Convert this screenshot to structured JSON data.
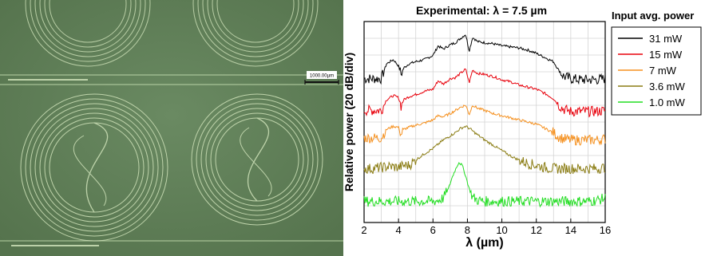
{
  "micrograph": {
    "scale_bar_label": "1000.00µm"
  },
  "chart_data": {
    "type": "line",
    "title": "Experimental:  λ = 7.5 µm",
    "xlabel": "λ (µm)",
    "ylabel": "Relative power (20 dB/div)",
    "xlim": [
      2,
      16
    ],
    "xticks": [
      "2",
      "4",
      "6",
      "8",
      "10",
      "12",
      "14",
      "16"
    ],
    "grid": true,
    "legend_title": "Input avg. power",
    "legend_position": "right",
    "series": [
      {
        "name": "31 mW",
        "color": "#000000",
        "x": [
          2,
          2.5,
          3,
          3.3,
          3.7,
          4,
          4.15,
          4.3,
          4.6,
          5,
          5.5,
          6,
          6.3,
          6.6,
          7,
          7.3,
          7.6,
          7.9,
          8.1,
          8.3,
          8.6,
          9,
          9.5,
          10,
          10.5,
          11,
          11.5,
          12,
          12.5,
          13,
          13.3,
          13.6,
          14,
          14.5,
          15,
          15.5,
          16
        ],
        "y": [
          -1.2,
          -1.2,
          -1.2,
          -0.5,
          -0.3,
          -0.6,
          -1.0,
          -0.7,
          -0.5,
          -0.4,
          -0.3,
          -0.1,
          0.35,
          0.2,
          0.4,
          0.5,
          0.7,
          0.9,
          0.1,
          0.75,
          0.55,
          0.5,
          0.45,
          0.35,
          0.3,
          0.25,
          0.15,
          0,
          -0.2,
          -0.4,
          -0.8,
          -1.1,
          -1.2,
          -1.25,
          -1.25,
          -1.25,
          -1.2
        ]
      },
      {
        "name": "15 mW",
        "color": "#e8000b",
        "x": [
          2,
          2.5,
          3,
          3.3,
          3.7,
          4,
          4.15,
          4.3,
          4.6,
          5,
          5.5,
          6,
          6.3,
          6.6,
          7,
          7.3,
          7.6,
          7.9,
          8.1,
          8.3,
          8.6,
          9,
          9.5,
          10,
          10.5,
          11,
          11.5,
          12,
          12.5,
          13,
          13.3,
          13.6,
          14,
          14.5,
          15,
          15.5,
          16
        ],
        "y": [
          -2.7,
          -2.7,
          -2.7,
          -2.2,
          -2.0,
          -2.1,
          -2.5,
          -2.2,
          -2.05,
          -1.95,
          -1.8,
          -1.7,
          -1.3,
          -1.45,
          -1.2,
          -1.15,
          -0.95,
          -0.75,
          -1.4,
          -0.8,
          -0.95,
          -1.0,
          -1.1,
          -1.25,
          -1.35,
          -1.5,
          -1.6,
          -1.7,
          -1.9,
          -2.15,
          -2.45,
          -2.65,
          -2.75,
          -2.75,
          -2.75,
          -2.75,
          -2.7
        ]
      },
      {
        "name": "7 mW",
        "color": "#f5901e",
        "x": [
          2,
          2.5,
          3,
          3.3,
          3.7,
          4,
          4.15,
          4.3,
          4.6,
          5,
          5.5,
          6,
          6.3,
          6.6,
          7,
          7.3,
          7.6,
          7.9,
          8.1,
          8.3,
          8.6,
          9,
          9.5,
          10,
          10.5,
          11,
          11.5,
          12,
          12.5,
          13,
          13.3,
          13.6,
          14,
          14.5,
          15,
          15.5,
          16
        ],
        "y": [
          -4.0,
          -4.0,
          -4.0,
          -3.6,
          -3.45,
          -3.5,
          -3.85,
          -3.6,
          -3.5,
          -3.4,
          -3.3,
          -3.15,
          -2.95,
          -3.0,
          -2.85,
          -2.7,
          -2.55,
          -2.45,
          -2.9,
          -2.45,
          -2.6,
          -2.7,
          -2.85,
          -2.95,
          -3.05,
          -3.15,
          -3.25,
          -3.35,
          -3.55,
          -3.75,
          -3.95,
          -4.05,
          -4.1,
          -4.1,
          -4.1,
          -4.1,
          -4.05
        ]
      },
      {
        "name": "3.6 mW",
        "color": "#8b7d14",
        "x": [
          2,
          2.5,
          3,
          3.5,
          4,
          4.3,
          4.6,
          5,
          5.5,
          6,
          6.3,
          6.6,
          7,
          7.3,
          7.6,
          7.9,
          8.2,
          8.5,
          9,
          9.5,
          10,
          10.5,
          11,
          11.5,
          12,
          12.5,
          13,
          13.5,
          14,
          14.5,
          15,
          15.5,
          16
        ],
        "y": [
          -5.45,
          -5.45,
          -5.4,
          -5.35,
          -5.4,
          -5.3,
          -5.3,
          -5.05,
          -4.75,
          -4.5,
          -4.3,
          -4.1,
          -3.9,
          -3.75,
          -3.55,
          -3.45,
          -3.6,
          -3.8,
          -4.1,
          -4.35,
          -4.6,
          -4.85,
          -5.05,
          -5.2,
          -5.3,
          -5.4,
          -5.45,
          -5.45,
          -5.45,
          -5.45,
          -5.45,
          -5.45,
          -5.4
        ]
      },
      {
        "name": "1.0 mW",
        "color": "#22dd22",
        "x": [
          2,
          2.5,
          3,
          3.5,
          4,
          4.5,
          5,
          5.5,
          6,
          6.3,
          6.6,
          6.9,
          7.1,
          7.3,
          7.5,
          7.7,
          7.9,
          8.1,
          8.3,
          8.6,
          9,
          9.5,
          10,
          10.5,
          11,
          11.5,
          12,
          12.5,
          13,
          13.5,
          14,
          14.5,
          15,
          15.5,
          16
        ],
        "y": [
          -7.0,
          -7.0,
          -7.0,
          -7.0,
          -7.0,
          -7.0,
          -7.0,
          -7.0,
          -7.0,
          -6.95,
          -6.85,
          -6.4,
          -5.9,
          -5.5,
          -5.15,
          -5.3,
          -5.8,
          -6.4,
          -6.8,
          -6.95,
          -7.0,
          -7.0,
          -7.0,
          -7.0,
          -7.0,
          -7.0,
          -7.0,
          -7.0,
          -7.0,
          -7.0,
          -7.0,
          -7.0,
          -7.0,
          -6.95,
          -6.85
        ]
      }
    ]
  }
}
